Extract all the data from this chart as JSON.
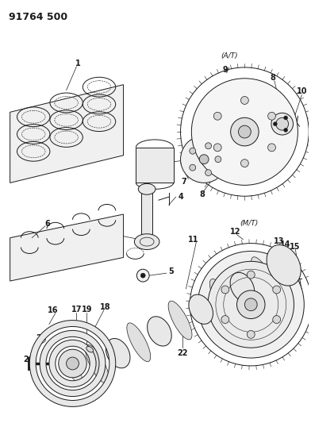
{
  "title": "91764 500",
  "bg_color": "#ffffff",
  "fig_width": 3.92,
  "fig_height": 5.33,
  "dpi": 100,
  "lc": "#1a1a1a",
  "lw": 0.7
}
